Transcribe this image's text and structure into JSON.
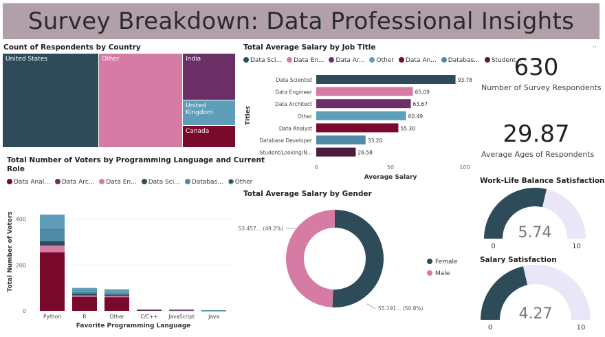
{
  "header": {
    "title": "Survey Breakdown: Data Professional Insights"
  },
  "treemap": {
    "title": "Count of Respondents by Country",
    "tiles": [
      {
        "label": "United States",
        "color": "#2d4b59"
      },
      {
        "label": "Other",
        "color": "#d67ba3"
      },
      {
        "label": "India",
        "color": "#6b2f66"
      },
      {
        "label": "United Kingdom",
        "color": "#5f9eb9"
      },
      {
        "label": "Canada",
        "color": "#7a0a2c"
      }
    ]
  },
  "job_chart": {
    "title": "Total Average Salary by Job Title",
    "legend": [
      {
        "label": "Data Sci...",
        "color": "#2d4b59"
      },
      {
        "label": "Data En...",
        "color": "#d67ba3"
      },
      {
        "label": "Data Ar...",
        "color": "#6b2f66"
      },
      {
        "label": "Other",
        "color": "#5f9eb9"
      },
      {
        "label": "Data An...",
        "color": "#7a0a2c"
      },
      {
        "label": "Databas...",
        "color": "#4f8aa6"
      },
      {
        "label": "Student...",
        "color": "#4a1f3d"
      }
    ],
    "y_axis_title": "Titles",
    "x_axis_title": "Average Salary",
    "x_ticks": [
      "0",
      "50",
      "100"
    ],
    "bars": [
      {
        "label": "Data Scientist",
        "value": 93.78,
        "text": "93.78",
        "color": "#2d4b59"
      },
      {
        "label": "Data Engineer",
        "value": 65.09,
        "text": "65.09",
        "color": "#d67ba3"
      },
      {
        "label": "Data Architect",
        "value": 63.67,
        "text": "63.67",
        "color": "#6b2f66"
      },
      {
        "label": "Other",
        "value": 60.49,
        "text": "60.49",
        "color": "#5f9eb9"
      },
      {
        "label": "Data Analyst",
        "value": 55.3,
        "text": "55.30",
        "color": "#7a0a2c"
      },
      {
        "label": "Database Developer",
        "value": 33.2,
        "text": "33.20",
        "color": "#4f8aa6"
      },
      {
        "label": "Student/Looking/N...",
        "value": 26.58,
        "text": "26.58",
        "color": "#4a1f3d"
      }
    ]
  },
  "kpis": {
    "respondents": {
      "value": "630",
      "label": "Number of Survey Respondents"
    },
    "age": {
      "value": "29.87",
      "label": "Average Ages of Respondents"
    }
  },
  "lang_chart": {
    "title_line1": "Total Number of Voters by Programming Language and Current",
    "title_line2": "Role",
    "legend": [
      {
        "label": "Data Anal...",
        "color": "#7a0a2c"
      },
      {
        "label": "Data Arc...",
        "color": "#6b2f66"
      },
      {
        "label": "Data En...",
        "color": "#d67ba3"
      },
      {
        "label": "Data Sci...",
        "color": "#2d4b59"
      },
      {
        "label": "Databas...",
        "color": "#4f8aa6"
      },
      {
        "label": "Other",
        "color": "#5f9eb9"
      }
    ],
    "y_axis_title": "Total Number of Voters",
    "x_axis_title": "Favorite Programming Language",
    "y_ticks": [
      "0",
      "200",
      "400"
    ],
    "categories": [
      "Python",
      "R",
      "Other",
      "C/C++",
      "JavaScript",
      "Java"
    ]
  },
  "gender_chart": {
    "title": "Total Average Salary by Gender",
    "slices": [
      {
        "label": "Female",
        "value": 55.191,
        "pct": 50.8,
        "text": "55.191... (50.8%)",
        "color": "#2d4b59"
      },
      {
        "label": "Male",
        "value": 53.457,
        "pct": 49.2,
        "text": "53.457... (49.2%)",
        "color": "#d67ba3"
      }
    ]
  },
  "gauge_wlb": {
    "title": "Work-Life Balance Satisfaction",
    "value": 5.74,
    "text": "5.74",
    "min": "0",
    "max": "10",
    "color": "#2d4b59",
    "track": "#e9e6f7"
  },
  "gauge_salary": {
    "title": "Salary Satisfaction",
    "value": 4.27,
    "text": "4.27",
    "min": "0",
    "max": "10",
    "color": "#2d4b59",
    "track": "#e9e6f7"
  },
  "chart_data": [
    {
      "type": "treemap",
      "title": "Count of Respondents by Country",
      "categories": [
        "United States",
        "Other",
        "India",
        "United Kingdom",
        "Canada"
      ]
    },
    {
      "type": "bar",
      "title": "Total Average Salary by Job Title",
      "xlabel": "Average Salary",
      "ylabel": "Titles",
      "xlim": [
        0,
        100
      ],
      "categories": [
        "Data Scientist",
        "Data Engineer",
        "Data Architect",
        "Other",
        "Data Analyst",
        "Database Developer",
        "Student/Looking/N..."
      ],
      "values": [
        93.78,
        65.09,
        63.67,
        60.49,
        55.3,
        33.2,
        26.58
      ]
    },
    {
      "type": "bar",
      "title": "Total Number of Voters by Programming Language and Current Role",
      "xlabel": "Favorite Programming Language",
      "ylabel": "Total Number of Voters",
      "ylim": [
        0,
        450
      ],
      "categories": [
        "Python",
        "R",
        "Other",
        "C/C++",
        "JavaScript",
        "Java"
      ],
      "series": [
        {
          "name": "Data Anal...",
          "values": [
            255,
            60,
            58,
            3,
            2,
            1
          ]
        },
        {
          "name": "Data Arc...",
          "values": [
            0,
            2,
            2,
            0,
            0,
            0
          ]
        },
        {
          "name": "Data En...",
          "values": [
            30,
            5,
            5,
            0,
            1,
            0
          ]
        },
        {
          "name": "Data Sci...",
          "values": [
            18,
            8,
            6,
            1,
            1,
            1
          ]
        },
        {
          "name": "Databas...",
          "values": [
            58,
            10,
            8,
            1,
            1,
            0
          ]
        },
        {
          "name": "Other",
          "values": [
            59,
            15,
            15,
            2,
            2,
            1
          ]
        }
      ]
    },
    {
      "type": "pie",
      "title": "Total Average Salary by Gender",
      "categories": [
        "Female",
        "Male"
      ],
      "values": [
        55.191,
        53.457
      ]
    }
  ]
}
